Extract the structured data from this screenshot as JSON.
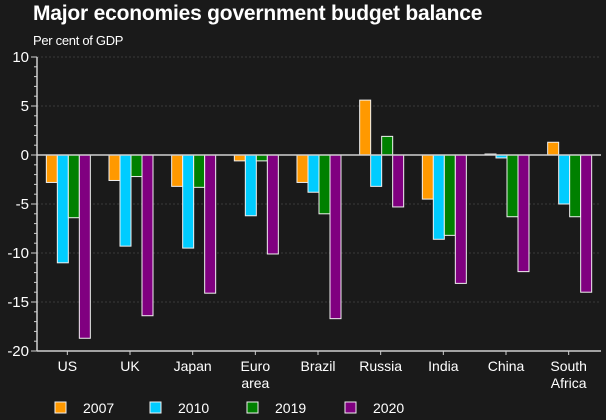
{
  "chart_data": {
    "type": "bar",
    "title": "Major economies government budget balance",
    "subtitle": "Per cent of GDP",
    "xlabel": "",
    "ylabel": "Per cent of GDP",
    "ylim": [
      -20,
      10
    ],
    "yticks": [
      10,
      5,
      0,
      -5,
      -10,
      -15,
      -20
    ],
    "grid": true,
    "legend_position": "bottom",
    "categories": [
      [
        "US"
      ],
      [
        "UK"
      ],
      [
        "Japan"
      ],
      [
        "Euro",
        "area"
      ],
      [
        "Brazil"
      ],
      [
        "Russia"
      ],
      [
        "India"
      ],
      [
        "China"
      ],
      [
        "South",
        "Africa"
      ]
    ],
    "series": [
      {
        "name": "2007",
        "color": "#ff9900",
        "values": [
          -2.8,
          -2.6,
          -3.2,
          -0.6,
          -2.8,
          5.6,
          -4.5,
          0.1,
          1.3
        ]
      },
      {
        "name": "2010",
        "color": "#00ccff",
        "values": [
          -11.0,
          -9.3,
          -9.5,
          -6.2,
          -3.8,
          -3.2,
          -8.6,
          -0.3,
          -5.0
        ]
      },
      {
        "name": "2019",
        "color": "#008000",
        "values": [
          -6.4,
          -2.2,
          -3.3,
          -0.6,
          -6.0,
          1.9,
          -8.2,
          -6.3,
          -6.3
        ]
      },
      {
        "name": "2020",
        "color": "#800080",
        "values": [
          -18.7,
          -16.4,
          -14.1,
          -10.1,
          -16.7,
          -5.3,
          -13.1,
          -11.9,
          -14.0
        ]
      }
    ]
  }
}
